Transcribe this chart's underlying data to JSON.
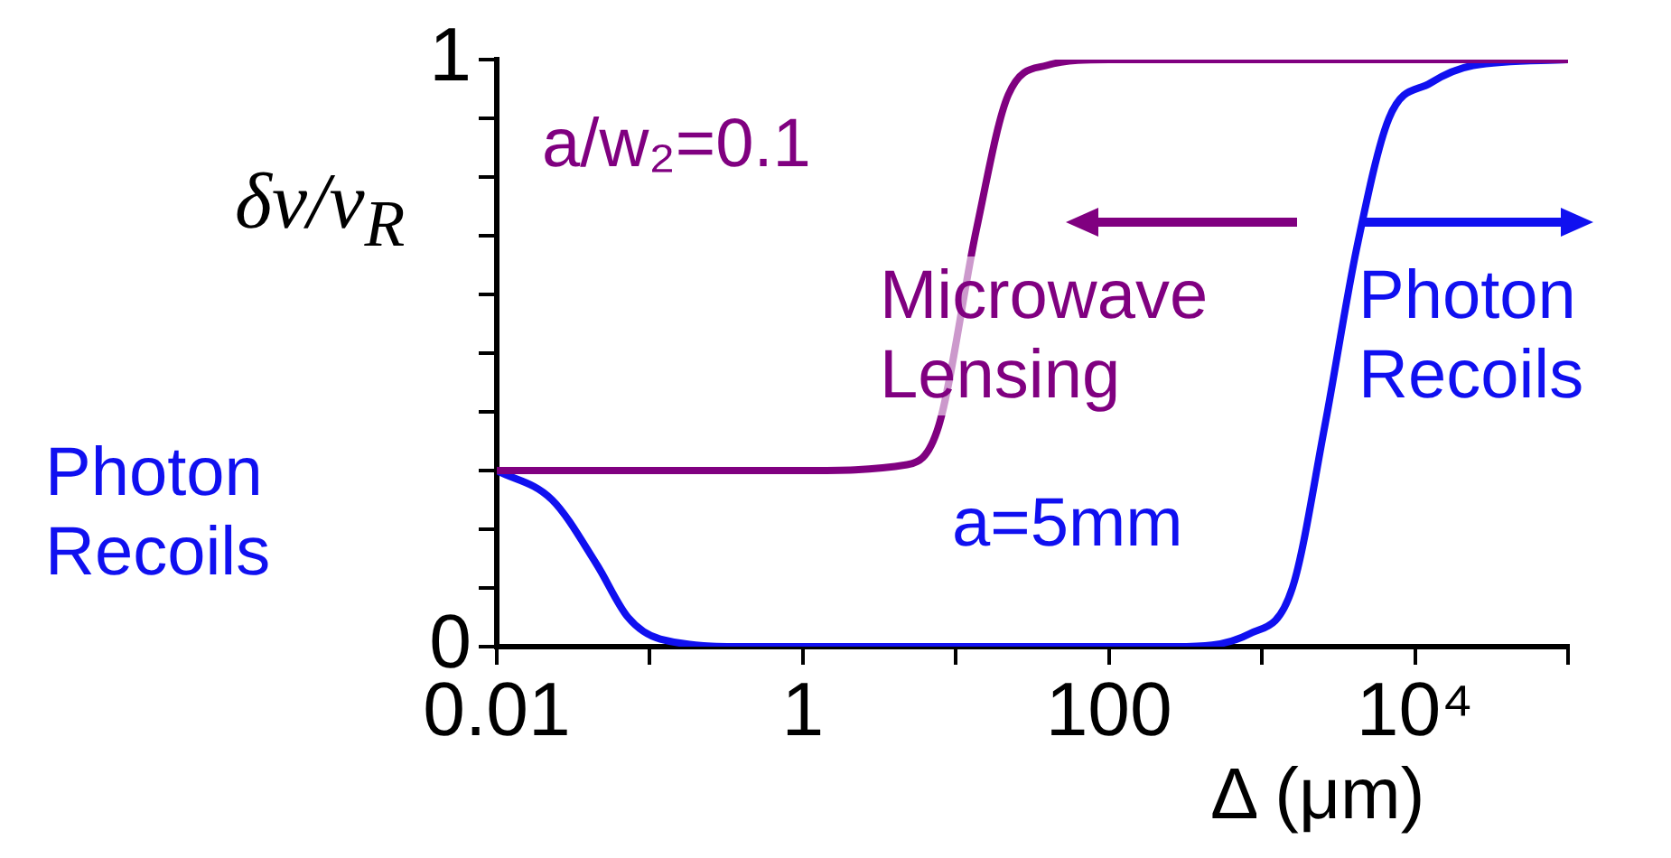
{
  "chart_data": {
    "type": "line",
    "xlabel": "Δ (μm)",
    "ylabel": "δν/ν$_{R}$",
    "log": "x",
    "xlim": [
      0.01,
      100000
    ],
    "xticks": [
      0.01,
      {
        "value": 0.1,
        "label": null
      },
      1,
      {
        "value": 10,
        "label": null
      },
      100,
      {
        "value": 1000,
        "label": null
      },
      {
        "value": 10000,
        "label": "10⁴"
      },
      {
        "value": 100000,
        "label": null
      }
    ],
    "ylim": [
      0,
      1
    ],
    "yticks": [
      0,
      {
        "value": 0.1,
        "label": null
      },
      {
        "value": 0.2,
        "label": null
      },
      {
        "value": 0.3,
        "label": null
      },
      {
        "value": 0.4,
        "label": null
      },
      {
        "value": 0.5,
        "label": null
      },
      {
        "value": 0.6,
        "label": null
      },
      {
        "value": 0.7,
        "label": null
      },
      {
        "value": 0.8,
        "label": null
      },
      {
        "value": 0.9,
        "label": null
      },
      1
    ],
    "series": [
      {
        "color": "#800080",
        "x": [
          0.01,
          1,
          4.8,
          7.7,
          13.6,
          22,
          39,
          100,
          1000,
          10000,
          100000
        ],
        "values": [
          0.3,
          0.3,
          0.31,
          0.375,
          0.71,
          0.94,
          0.99,
          1.0,
          1.0,
          1.0,
          1.0
        ]
      },
      {
        "color": "#1010f0",
        "x": [
          0.01,
          0.023,
          0.045,
          0.072,
          0.117,
          0.43,
          270,
          830,
          1580,
          2570,
          4170,
          6760,
          12600,
          24000,
          100000
        ],
        "values": [
          0.3,
          0.25,
          0.14,
          0.05,
          0.013,
          0,
          0,
          0.022,
          0.1,
          0.375,
          0.68,
          0.9,
          0.96,
          0.99,
          1.0
        ]
      }
    ],
    "annotations": [
      "a/w₂=0.1",
      "Microwave Lensing",
      "Photon Recoils",
      "a=5mm",
      "Photon Recoils"
    ],
    "legend": false,
    "grid": false,
    "marker": "none",
    "line_style": "solid"
  }
}
